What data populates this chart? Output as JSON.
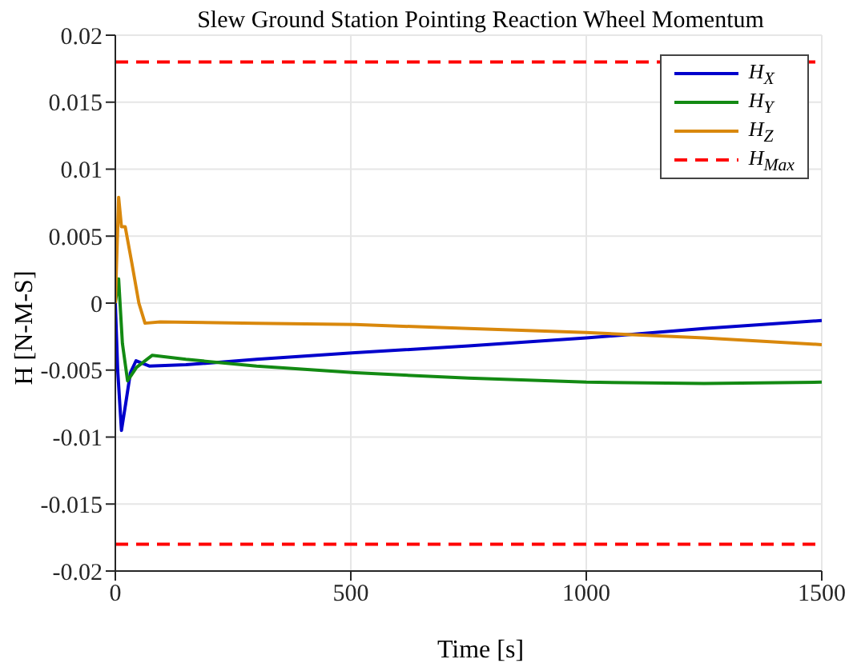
{
  "chart_data": {
    "type": "line",
    "title": "Slew Ground Station Pointing Reaction Wheel Momentum",
    "xlabel": "Time [s]",
    "ylabel": "H [N-M-S]",
    "series": [
      {
        "name": "H$_{X}$",
        "color": "#0000cc",
        "x": [
          0,
          5,
          13,
          22,
          32,
          44,
          72,
          150,
          300,
          509,
          750,
          1000,
          1250,
          1500
        ],
        "values": [
          0,
          -0.005,
          -0.0095,
          -0.0075,
          -0.0052,
          -0.0043,
          -0.0047,
          -0.0046,
          -0.0042,
          -0.0037,
          -0.0032,
          -0.0026,
          -0.0019,
          -0.0013
        ]
      },
      {
        "name": "H$_{Y}$",
        "color": "#138a13",
        "x": [
          0,
          7,
          15,
          26,
          45,
          78,
          150,
          300,
          509,
          750,
          1000,
          1250,
          1500
        ],
        "values": [
          0,
          0.0018,
          -0.003,
          -0.0058,
          -0.0048,
          -0.0039,
          -0.0042,
          -0.0047,
          -0.0052,
          -0.0056,
          -0.0059,
          -0.006,
          -0.0059
        ]
      },
      {
        "name": "H$_{Z}$",
        "color": "#d9880c",
        "x": [
          0,
          7,
          13,
          21,
          35,
          50,
          63,
          95,
          300,
          509,
          750,
          1000,
          1250,
          1500
        ],
        "values": [
          0,
          0.0079,
          0.0057,
          0.0057,
          0.003,
          0,
          -0.0015,
          -0.0014,
          -0.0015,
          -0.0016,
          -0.0019,
          -0.0022,
          -0.0026,
          -0.0031
        ]
      }
    ],
    "ref_lines": [
      {
        "axis": "y",
        "value": 0.018,
        "label": "H$_{Max}$",
        "color": "#ff0000",
        "line_style": "dashed"
      },
      {
        "axis": "y",
        "value": -0.018,
        "label": null,
        "color": "#ff0000",
        "line_style": "dashed"
      }
    ],
    "xlim": [
      0,
      1500
    ],
    "xticks": [
      0,
      500,
      1000,
      1500
    ],
    "ylim": [
      -0.02,
      0.02
    ],
    "yticks": [
      -0.02,
      -0.015,
      -0.01,
      -0.005,
      0,
      0.005,
      0.01,
      0.015,
      0.02
    ],
    "grid": true,
    "legend": "top right",
    "marker": "none",
    "line_style": "solid"
  }
}
